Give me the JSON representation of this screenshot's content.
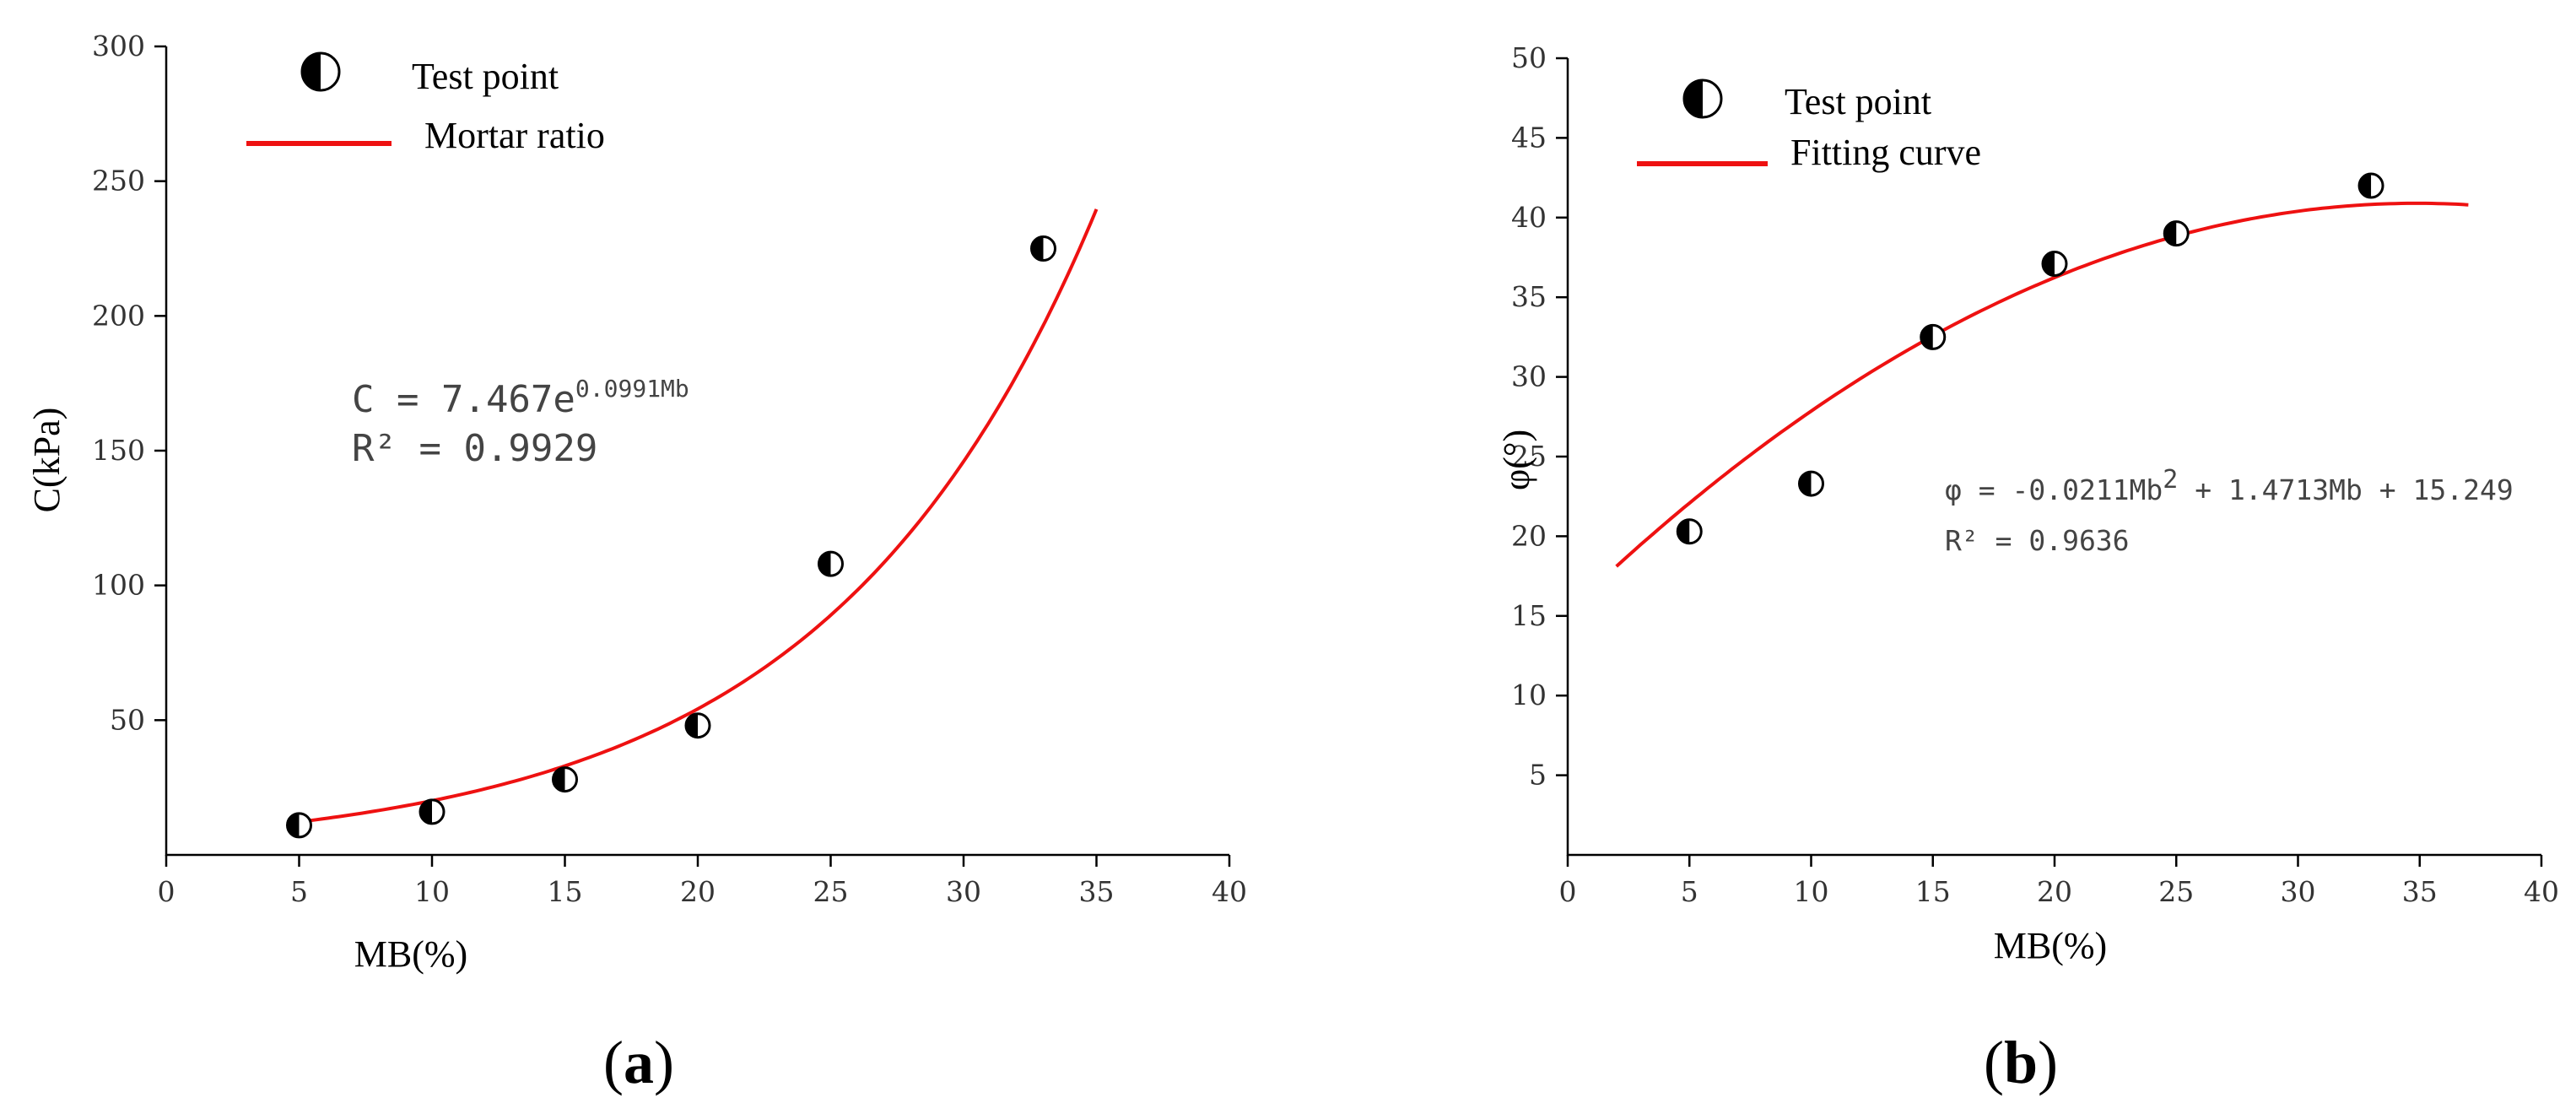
{
  "panel_labels": [
    "(a)",
    "(b)"
  ],
  "chart_data": [
    {
      "type": "scatter",
      "panel": "(a)",
      "xlabel": "MB(%)",
      "ylabel": "C(kPa)",
      "xlim": [
        0,
        40
      ],
      "ylim": [
        0,
        300
      ],
      "xticks": [
        0,
        5,
        10,
        15,
        20,
        25,
        30,
        35,
        40
      ],
      "yticks": [
        50,
        100,
        150,
        200,
        250,
        300
      ],
      "grid": false,
      "legend": {
        "placement": "top-left",
        "entries": [
          "Test point",
          "Mortar ratio"
        ]
      },
      "series": [
        {
          "name": "Test point",
          "kind": "points",
          "x": [
            5,
            10,
            15,
            20,
            25,
            33
          ],
          "y": [
            11,
            16,
            28,
            48,
            108,
            225
          ]
        },
        {
          "name": "Mortar ratio",
          "kind": "fit-curve",
          "color": "#ee1111",
          "model": "exponential",
          "a": 7.467,
          "b": 0.0991,
          "x_range": [
            5,
            35
          ]
        }
      ],
      "annotation": {
        "equation_prefix": "C = 7.467e",
        "equation_exponent": "0.0991Mb",
        "r2": "R² = 0.9929"
      }
    },
    {
      "type": "scatter",
      "panel": "(b)",
      "xlabel": "MB(%)",
      "ylabel": "φ(°)",
      "xlim": [
        0,
        40
      ],
      "ylim": [
        0,
        50
      ],
      "xticks": [
        0,
        5,
        10,
        15,
        20,
        25,
        30,
        35,
        40
      ],
      "yticks": [
        5,
        10,
        15,
        20,
        25,
        30,
        35,
        40,
        45,
        50
      ],
      "grid": false,
      "legend": {
        "placement": "top-left",
        "entries": [
          "Test point",
          "Fitting curve"
        ]
      },
      "series": [
        {
          "name": "Test point",
          "kind": "points",
          "x": [
            5,
            10,
            15,
            20,
            25,
            33
          ],
          "y": [
            20.3,
            23.3,
            32.5,
            37.1,
            39.0,
            42.0
          ]
        },
        {
          "name": "Fitting curve",
          "kind": "fit-curve",
          "color": "#ee1111",
          "model": "quadratic",
          "coefficients": [
            -0.0211,
            1.4713,
            15.249
          ],
          "x_range": [
            2,
            37
          ]
        }
      ],
      "annotation": {
        "equation_prefix": "φ = -0.0211Mb",
        "equation_sup": "2",
        "equation_suffix": " + 1.4713Mb + 15.249",
        "r2": "R² = 0.9636"
      }
    }
  ]
}
